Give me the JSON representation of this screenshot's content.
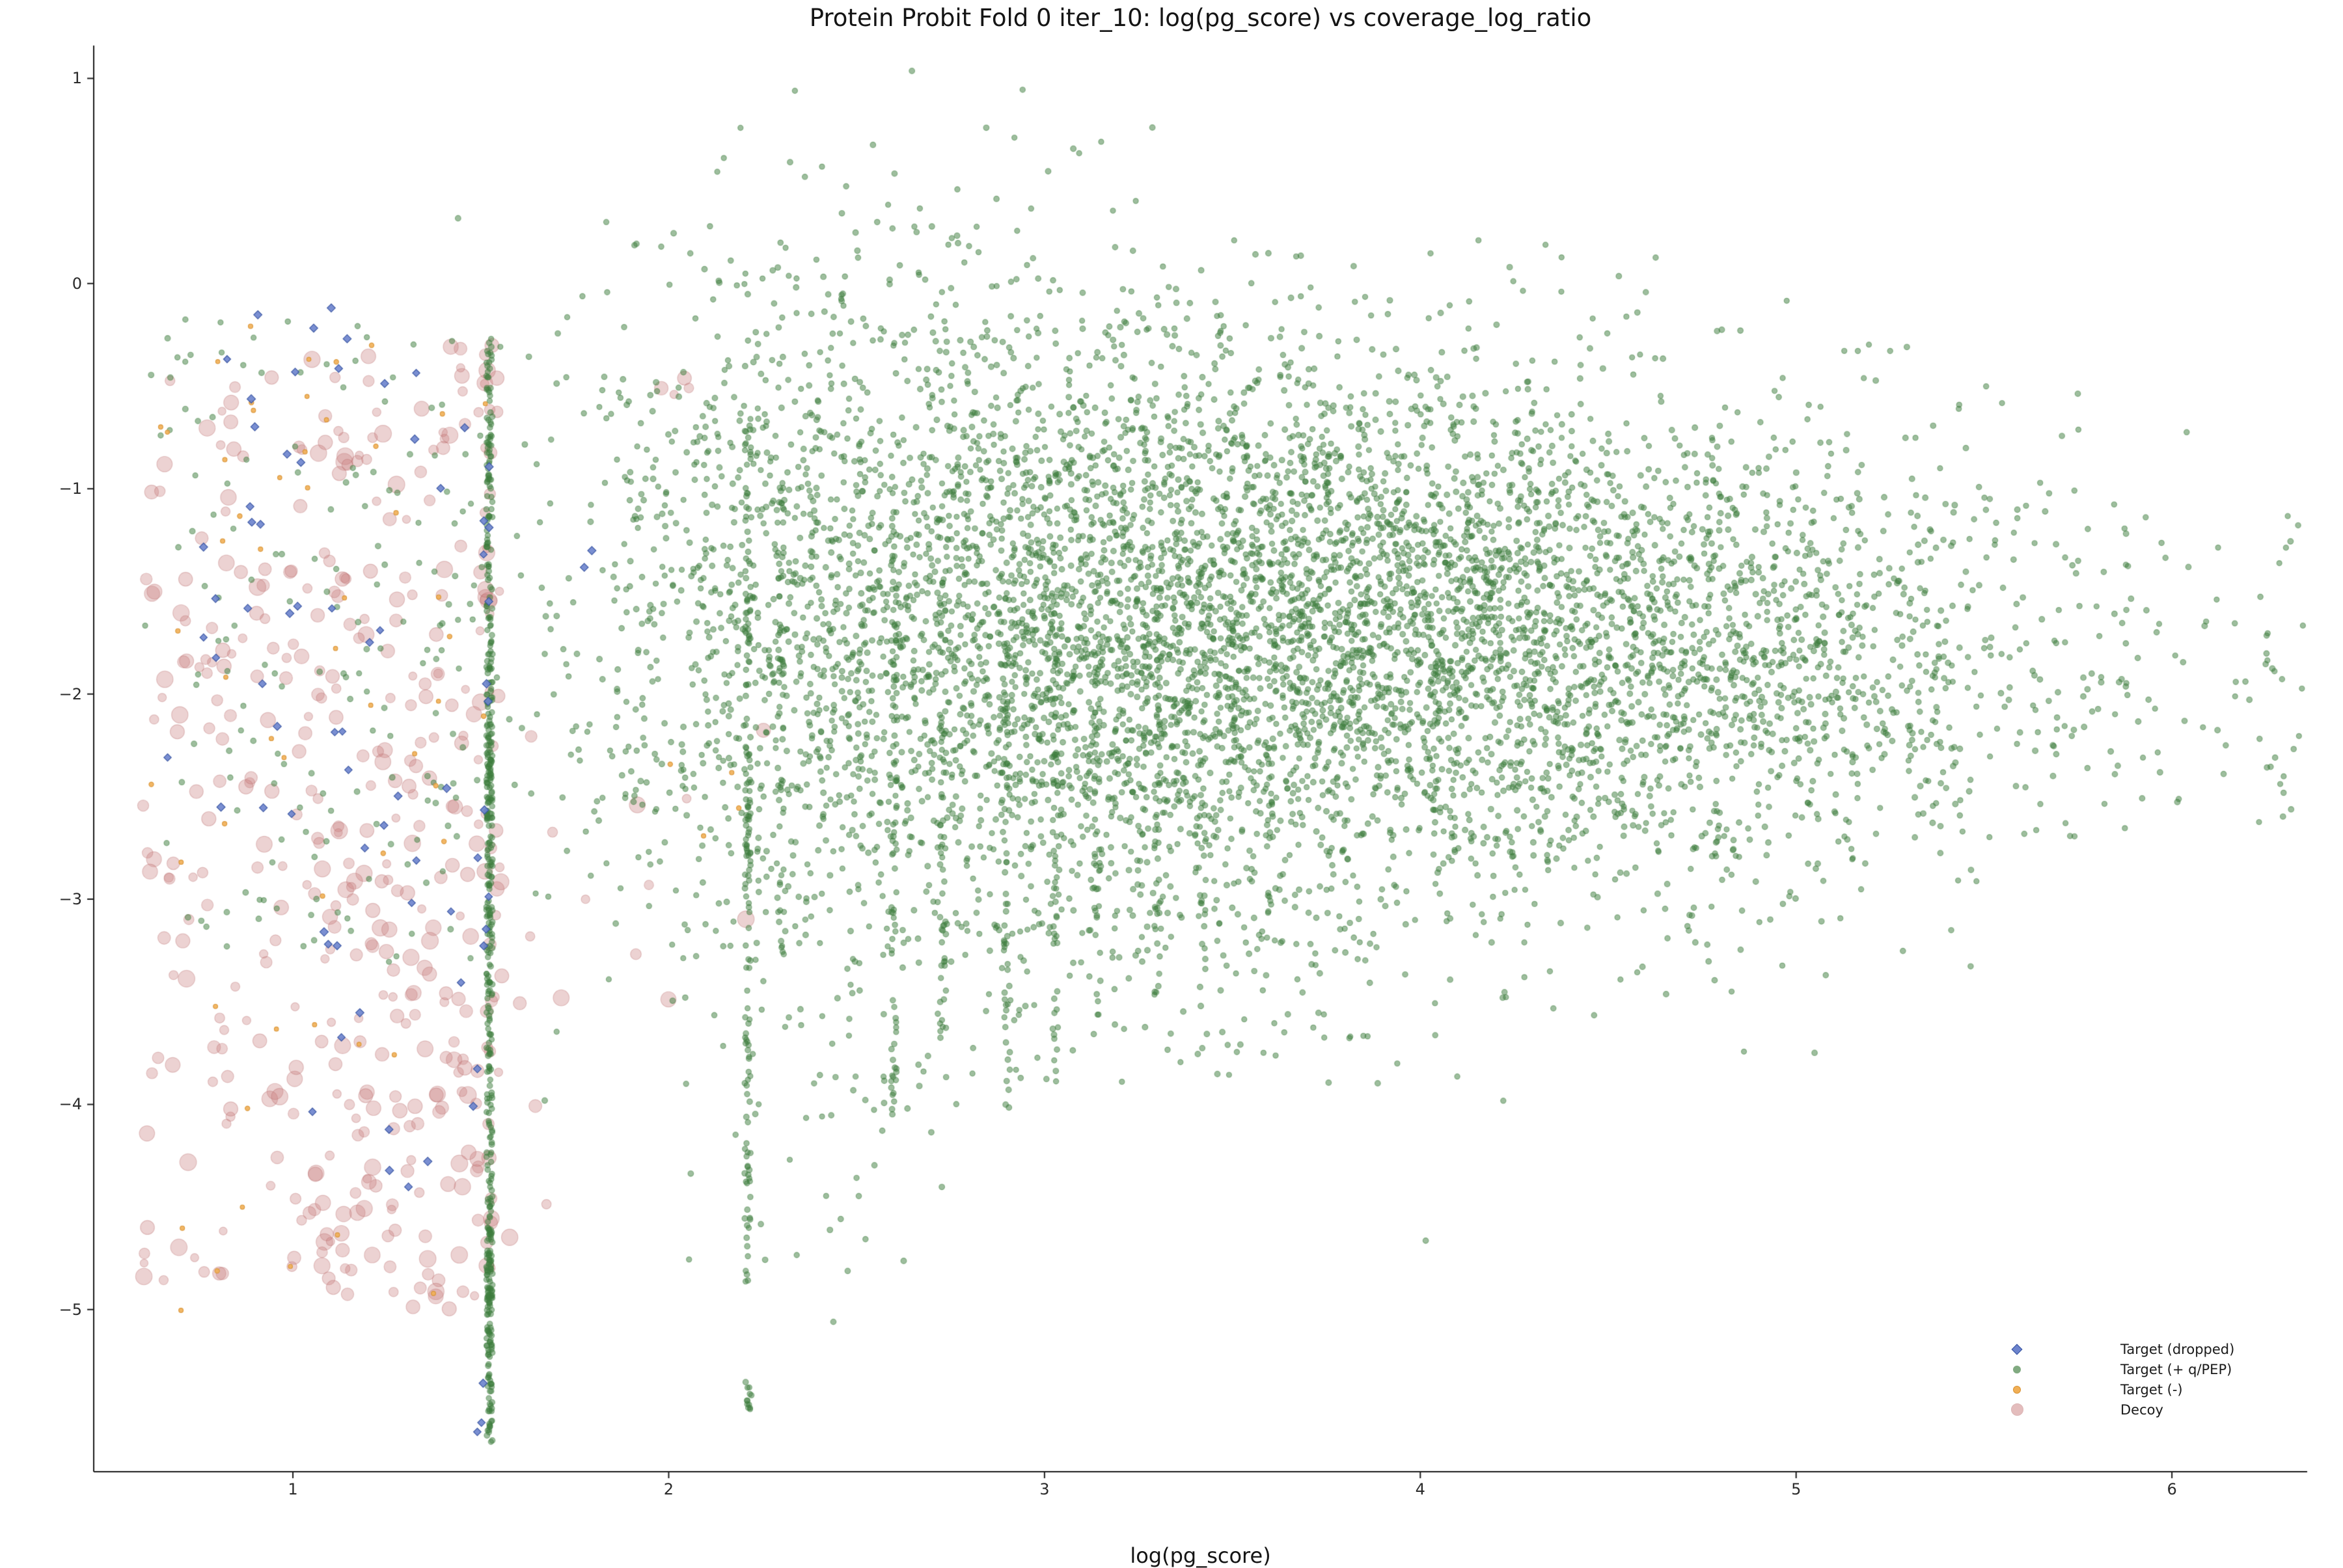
{
  "page": {
    "background": "#ffffff"
  },
  "axes": {
    "spine_color": "#1a1a1a",
    "tick_color": "#2b2b2b",
    "title_color": "#141414"
  },
  "chart_data": {
    "type": "scatter",
    "title": "Protein Probit Fold 0 iter_10: log(pg_score) vs coverage_log_ratio",
    "xlabel": "log(pg_score)",
    "ylabel": "",
    "xlim": [
      0.47,
      6.36
    ],
    "ylim": [
      -5.79,
      1.16
    ],
    "x_ticks": [
      1,
      2,
      3,
      4,
      5,
      6
    ],
    "y_ticks": [
      1,
      0,
      -1,
      -2,
      -3,
      -4,
      -5
    ],
    "grid": false,
    "legend": {
      "position": "lower-right",
      "order": [
        "dropped",
        "target_pos",
        "target_neg",
        "decoy"
      ]
    },
    "seed": 20240613,
    "series": [
      {
        "key": "decoy",
        "label": "Decoy",
        "marker": "circle",
        "color": "#c97d7d",
        "edge_color": "#b86a6a",
        "alpha": 0.35,
        "size_range": [
          6,
          13
        ],
        "clusters": [
          {
            "type": "uniform",
            "n": 150,
            "x0": 0.6,
            "x1": 1.1,
            "y0": -4.9,
            "y1": -0.4
          },
          {
            "type": "uniform",
            "n": 200,
            "x0": 1.05,
            "x1": 1.55,
            "y0": -5.0,
            "y1": -0.3
          },
          {
            "type": "gauss",
            "n": 60,
            "mx": 1.3,
            "my": -3.2,
            "sx": 0.15,
            "sy": 0.7
          },
          {
            "type": "vline",
            "n": 30,
            "x": 1.52,
            "jx": 0.01,
            "y0": -4.9,
            "y1": -0.4
          },
          {
            "type": "uniform",
            "n": 12,
            "x0": 1.6,
            "x1": 2.4,
            "y0": -4.6,
            "y1": -2.0
          },
          {
            "type": "uniform",
            "n": 4,
            "x0": 1.9,
            "x1": 2.2,
            "y0": -0.6,
            "y1": -0.4
          }
        ]
      },
      {
        "key": "target_pos",
        "label": "Target (+ q/PEP)",
        "marker": "circle",
        "color": "#3e7d3e",
        "edge_color": "#3e7d3e",
        "alpha": 0.5,
        "size_range": [
          4.0,
          4.4
        ],
        "clusters": [
          {
            "type": "gauss",
            "n": 3200,
            "mx": 3.9,
            "my": -1.6,
            "sx": 0.72,
            "sy": 0.55
          },
          {
            "type": "gauss",
            "n": 1500,
            "mx": 3.3,
            "my": -2.1,
            "sx": 0.75,
            "sy": 0.6
          },
          {
            "type": "gauss",
            "n": 900,
            "mx": 2.7,
            "my": -1.8,
            "sx": 0.45,
            "sy": 0.75
          },
          {
            "type": "gauss",
            "n": 700,
            "mx": 3.2,
            "my": -0.8,
            "sx": 0.7,
            "sy": 0.4
          },
          {
            "type": "gauss",
            "n": 500,
            "mx": 4.5,
            "my": -2.3,
            "sx": 0.5,
            "sy": 0.5
          },
          {
            "type": "gauss",
            "n": 260,
            "mx": 5.1,
            "my": -1.8,
            "sx": 0.35,
            "sy": 0.45
          },
          {
            "type": "uniform",
            "n": 130,
            "x0": 5.3,
            "x1": 6.36,
            "y0": -2.7,
            "y1": -1.1
          },
          {
            "type": "gauss",
            "n": 120,
            "mx": 2.55,
            "my": 0.1,
            "sx": 0.38,
            "sy": 0.4
          },
          {
            "type": "uniform",
            "n": 180,
            "x0": 1.85,
            "x1": 2.45,
            "y0": -3.3,
            "y1": -0.4
          },
          {
            "type": "uniform",
            "n": 140,
            "x0": 0.6,
            "x1": 1.5,
            "y0": -3.4,
            "y1": -0.15
          },
          {
            "type": "gauss",
            "n": 70,
            "mx": 2.45,
            "my": -3.9,
            "sx": 0.25,
            "sy": 0.5
          },
          {
            "type": "uniform",
            "n": 90,
            "x0": 2.9,
            "x1": 3.9,
            "y0": -3.9,
            "y1": -3.0
          },
          {
            "type": "vline",
            "n": 420,
            "x": 1.523,
            "jx": 0.008,
            "y0": -5.65,
            "y1": -0.25
          },
          {
            "type": "vline",
            "n": 60,
            "x": 1.523,
            "jx": 0.008,
            "y0": -5.2,
            "y1": -4.6
          },
          {
            "type": "vline",
            "n": 50,
            "x": 1.523,
            "jx": 0.008,
            "y0": -2.65,
            "y1": -2.1
          },
          {
            "type": "vline",
            "n": 150,
            "x": 2.21,
            "jx": 0.008,
            "y0": -4.9,
            "y1": -0.6
          },
          {
            "type": "vline",
            "n": 12,
            "x": 2.21,
            "jx": 0.01,
            "y0": -5.5,
            "y1": -5.35
          },
          {
            "type": "vline",
            "n": 45,
            "x": 2.3,
            "jx": 0.008,
            "y0": -3.5,
            "y1": -0.9
          },
          {
            "type": "vline",
            "n": 80,
            "x": 2.6,
            "jx": 0.008,
            "y0": -4.05,
            "y1": -1.1
          },
          {
            "type": "vline",
            "n": 50,
            "x": 2.73,
            "jx": 0.008,
            "y0": -3.7,
            "y1": -1.4
          },
          {
            "type": "vline",
            "n": 65,
            "x": 2.9,
            "jx": 0.008,
            "y0": -4.05,
            "y1": -1.5
          },
          {
            "type": "vline",
            "n": 50,
            "x": 3.03,
            "jx": 0.008,
            "y0": -3.9,
            "y1": -1.6
          },
          {
            "type": "vline",
            "n": 40,
            "x": 3.14,
            "jx": 0.008,
            "y0": -3.6,
            "y1": -1.7
          },
          {
            "type": "vline",
            "n": 35,
            "x": 3.3,
            "jx": 0.008,
            "y0": -3.5,
            "y1": -1.9
          },
          {
            "type": "vline",
            "n": 25,
            "x": 3.42,
            "jx": 0.008,
            "y0": -3.3,
            "y1": -2.0
          },
          {
            "type": "vline",
            "n": 20,
            "x": 3.6,
            "jx": 0.008,
            "y0": -3.2,
            "y1": -2.2
          }
        ]
      },
      {
        "key": "target_neg",
        "label": "Target (-)",
        "marker": "circle",
        "color": "#f1af55",
        "edge_color": "#d89233",
        "alpha": 0.9,
        "size_range": [
          3.2,
          3.6
        ],
        "clusters": [
          {
            "type": "uniform",
            "n": 40,
            "x0": 0.6,
            "x1": 1.52,
            "y0": -2.9,
            "y1": -0.2
          },
          {
            "type": "uniform",
            "n": 14,
            "x0": 0.68,
            "x1": 1.5,
            "y0": -5.15,
            "y1": -2.9
          },
          {
            "type": "uniform",
            "n": 4,
            "x0": 1.55,
            "x1": 2.35,
            "y0": -2.7,
            "y1": -2.3
          }
        ]
      },
      {
        "key": "dropped",
        "label": "Target (dropped)",
        "marker": "diamond",
        "color": "#6c83cd",
        "edge_color": "#33509f",
        "alpha": 0.9,
        "size_range": [
          5.5,
          6.5
        ],
        "clusters": [
          {
            "type": "uniform",
            "n": 40,
            "x0": 0.62,
            "x1": 1.5,
            "y0": -2.6,
            "y1": -0.1
          },
          {
            "type": "uniform",
            "n": 20,
            "x0": 0.95,
            "x1": 1.52,
            "y0": -4.45,
            "y1": -2.6
          },
          {
            "type": "vline",
            "n": 10,
            "x": 1.515,
            "jx": 0.008,
            "y0": -3.2,
            "y1": -0.3
          },
          {
            "type": "vline",
            "n": 3,
            "x": 1.5,
            "jx": 0.01,
            "y0": -5.6,
            "y1": -5.35
          },
          {
            "type": "uniform",
            "n": 2,
            "x0": 1.72,
            "x1": 1.8,
            "y0": -1.4,
            "y1": -1.25
          }
        ]
      }
    ]
  }
}
